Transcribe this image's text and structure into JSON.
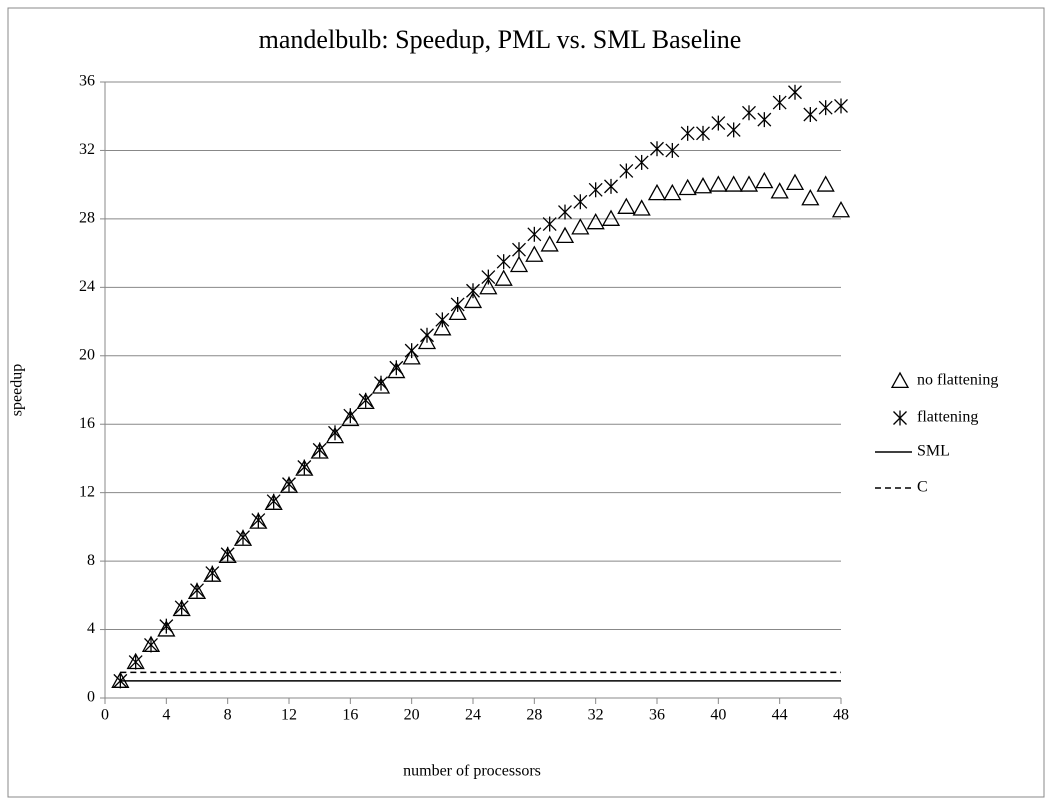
{
  "chart_data": {
    "type": "scatter",
    "title": "mandelbulb: Speedup, PML vs. SML Baseline",
    "xlabel": "number of processors",
    "ylabel": "speedup",
    "xlim": [
      0,
      48
    ],
    "xticks": [
      0,
      4,
      8,
      12,
      16,
      20,
      24,
      28,
      32,
      36,
      40,
      44,
      48
    ],
    "ylim": [
      0,
      36
    ],
    "yticks": [
      0,
      4,
      8,
      12,
      16,
      20,
      24,
      28,
      32,
      36
    ],
    "grid": true,
    "legend": "right",
    "series": [
      {
        "name": "no flattening",
        "color": "#000000",
        "style": "triangle",
        "x": [
          1,
          2,
          3,
          4,
          5,
          6,
          7,
          8,
          9,
          10,
          11,
          12,
          13,
          14,
          15,
          16,
          17,
          18,
          19,
          20,
          21,
          22,
          23,
          24,
          25,
          26,
          27,
          28,
          29,
          30,
          31,
          32,
          33,
          34,
          35,
          36,
          37,
          38,
          39,
          40,
          41,
          42,
          43,
          44,
          45,
          46,
          47,
          48
        ],
        "values": [
          1.0,
          2.1,
          3.1,
          4.0,
          5.2,
          6.2,
          7.2,
          8.3,
          9.3,
          10.3,
          11.4,
          12.4,
          13.4,
          14.4,
          15.3,
          16.3,
          17.3,
          18.2,
          19.1,
          19.9,
          20.8,
          21.6,
          22.5,
          23.2,
          24.0,
          24.5,
          25.3,
          25.9,
          26.5,
          27.0,
          27.5,
          27.8,
          28.0,
          28.7,
          28.6,
          29.5,
          29.5,
          29.8,
          29.9,
          30.0,
          30.0,
          30.0,
          30.2,
          29.6,
          30.1,
          29.2,
          30.0,
          28.5
        ]
      },
      {
        "name": "flattening",
        "color": "#000000",
        "style": "asterisk",
        "x": [
          1,
          2,
          3,
          4,
          5,
          6,
          7,
          8,
          9,
          10,
          11,
          12,
          13,
          14,
          15,
          16,
          17,
          18,
          19,
          20,
          21,
          22,
          23,
          24,
          25,
          26,
          27,
          28,
          29,
          30,
          31,
          32,
          33,
          34,
          35,
          36,
          37,
          38,
          39,
          40,
          41,
          42,
          43,
          44,
          45,
          46,
          47,
          48
        ],
        "values": [
          1.0,
          2.1,
          3.1,
          4.2,
          5.3,
          6.3,
          7.3,
          8.4,
          9.4,
          10.4,
          11.5,
          12.5,
          13.5,
          14.5,
          15.5,
          16.5,
          17.4,
          18.4,
          19.3,
          20.3,
          21.2,
          22.1,
          23.0,
          23.8,
          24.6,
          25.5,
          26.2,
          27.1,
          27.7,
          28.4,
          29.0,
          29.7,
          29.9,
          30.8,
          31.3,
          32.1,
          32.0,
          33.0,
          33.0,
          33.6,
          33.2,
          34.2,
          33.8,
          34.8,
          35.4,
          34.1,
          34.5,
          34.6
        ]
      },
      {
        "name": "SML",
        "color": "#000000",
        "style": "solid",
        "x": [
          1,
          48
        ],
        "values": [
          1,
          1
        ]
      },
      {
        "name": "C",
        "color": "#000000",
        "style": "dashed",
        "x": [
          1,
          48
        ],
        "values": [
          1.5,
          1.5
        ]
      }
    ]
  }
}
